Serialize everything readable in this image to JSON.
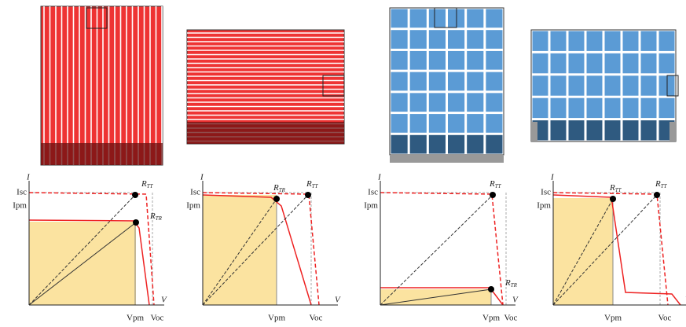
{
  "panels": [
    {
      "y_axis": "I",
      "x_axis": "V",
      "isc": "Isc",
      "ipm": "Ipm",
      "vpm": "Vpm",
      "voc": "Voc",
      "point_a": {
        "base": "R",
        "sub": "TT"
      },
      "point_b": {
        "base": "R",
        "sub": "TR"
      }
    },
    {
      "y_axis": "I",
      "x_axis": "V",
      "isc": "Isc",
      "ipm": "Ipm",
      "vpm": "Vpm",
      "voc": "Voc",
      "point_a": {
        "base": "R",
        "sub": "TR"
      },
      "point_b": {
        "base": "R",
        "sub": "TT"
      }
    },
    {
      "y_axis": "I",
      "x_axis": "V",
      "isc": "Isc",
      "ipm": "Ipm",
      "vpm": "Vpm",
      "voc": "Voc",
      "point_a": {
        "base": "R",
        "sub": "TT"
      },
      "point_b": {
        "base": "R",
        "sub": "TR"
      }
    },
    {
      "y_axis": "I",
      "x_axis": "V",
      "isc": "Isc",
      "ipm": "Ipm",
      "vpm": "Vpm",
      "voc": "Voc",
      "point_a": {
        "base": "R",
        "sub": "TT"
      },
      "point_b": {
        "base": "R",
        "sub": "TT"
      }
    }
  ]
}
